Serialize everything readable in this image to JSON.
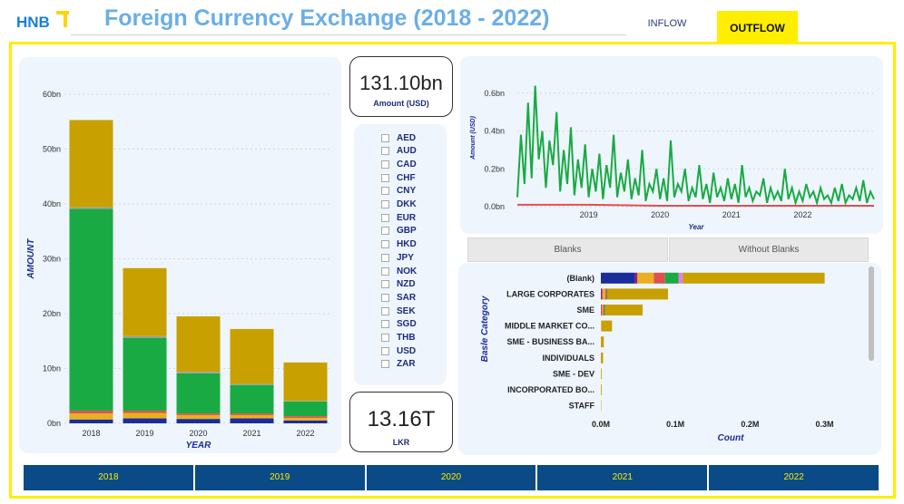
{
  "header": {
    "logo_text": "HNB",
    "title": "Foreign Currency Exchange  (2018 - 2022)",
    "tabs": [
      {
        "label": "INFLOW",
        "active": false
      },
      {
        "label": "OUTFLOW",
        "active": true
      }
    ]
  },
  "colors": {
    "title": "#6aaee8",
    "accent": "#ffee00",
    "navy": "#0a4a86",
    "green": "#1aaa44",
    "gold": "#c8a000"
  },
  "kpis": {
    "amount_value": "131.10bn",
    "amount_label": "Amount (USD)",
    "lkr_value": "13.16T",
    "lkr_label": "LKR"
  },
  "currencies": [
    "AED",
    "AUD",
    "CAD",
    "CHF",
    "CNY",
    "DKK",
    "EUR",
    "GBP",
    "HKD",
    "JPY",
    "NOK",
    "NZD",
    "SAR",
    "SEK",
    "SGD",
    "THB",
    "USD",
    "ZAR"
  ],
  "blanks_toggle": {
    "left": "Blanks",
    "right": "Without Blanks"
  },
  "year_slicer": [
    "2018",
    "2019",
    "2020",
    "2021",
    "2022"
  ],
  "chart_data": [
    {
      "type": "bar",
      "stacked": true,
      "categories": [
        "2018",
        "2019",
        "2020",
        "2021",
        "2022"
      ],
      "xlabel": "YEAR",
      "ylabel": "AMOUNT",
      "ylim": [
        0,
        60
      ],
      "yticks": [
        "0bn",
        "10bn",
        "20bn",
        "30bn",
        "40bn",
        "50bn",
        "60bn"
      ],
      "series": [
        {
          "color": "#1a2e9a",
          "values": [
            0.7,
            0.9,
            0.8,
            0.9,
            0.5
          ]
        },
        {
          "color": "#e8b020",
          "values": [
            1.1,
            1.0,
            0.7,
            0.6,
            0.5
          ]
        },
        {
          "color": "#e05050",
          "values": [
            0.5,
            0.4,
            0.3,
            0.3,
            0.3
          ]
        },
        {
          "color": "#1aaa44",
          "values": [
            36.8,
            13.3,
            7.3,
            5.2,
            2.7
          ]
        },
        {
          "color": "#a0a0a0",
          "values": [
            0.3,
            0.3,
            0.3,
            0.2,
            0.1
          ]
        },
        {
          "color": "#c8a000",
          "values": [
            15.9,
            12.4,
            10.1,
            10.0,
            7.0
          ]
        }
      ]
    },
    {
      "type": "line",
      "xlabel": "Year",
      "ylabel": "Amount (USD)",
      "ylim": [
        0,
        0.7
      ],
      "yticks": [
        "0.0bn",
        "0.2bn",
        "0.4bn",
        "0.6bn"
      ],
      "xticks": [
        "2019",
        "2020",
        "2021",
        "2022"
      ],
      "x_range": [
        2018.0,
        2023.0
      ],
      "series": [
        {
          "color": "#1aaa44",
          "x": [
            2018.0,
            2018.05,
            2018.1,
            2018.15,
            2018.2,
            2018.25,
            2018.3,
            2018.35,
            2018.4,
            2018.45,
            2018.5,
            2018.55,
            2018.6,
            2018.65,
            2018.7,
            2018.75,
            2018.8,
            2018.85,
            2018.9,
            2018.95,
            2019.0,
            2019.05,
            2019.1,
            2019.15,
            2019.2,
            2019.25,
            2019.3,
            2019.35,
            2019.4,
            2019.45,
            2019.5,
            2019.55,
            2019.6,
            2019.65,
            2019.7,
            2019.75,
            2019.8,
            2019.85,
            2019.9,
            2019.95,
            2020.0,
            2020.05,
            2020.1,
            2020.15,
            2020.2,
            2020.25,
            2020.3,
            2020.35,
            2020.4,
            2020.45,
            2020.5,
            2020.55,
            2020.6,
            2020.65,
            2020.7,
            2020.75,
            2020.8,
            2020.85,
            2020.9,
            2020.95,
            2021.0,
            2021.05,
            2021.1,
            2021.15,
            2021.2,
            2021.25,
            2021.3,
            2021.35,
            2021.4,
            2021.45,
            2021.5,
            2021.55,
            2021.6,
            2021.65,
            2021.7,
            2021.75,
            2021.8,
            2021.85,
            2021.9,
            2021.95,
            2022.0,
            2022.05,
            2022.1,
            2022.15,
            2022.2,
            2022.25,
            2022.3,
            2022.35,
            2022.4,
            2022.45,
            2022.5,
            2022.55,
            2022.6,
            2022.65,
            2022.7,
            2022.75,
            2022.8,
            2022.85,
            2022.9,
            2022.95,
            2023.0
          ],
          "y": [
            0.05,
            0.38,
            0.12,
            0.55,
            0.15,
            0.64,
            0.25,
            0.4,
            0.1,
            0.35,
            0.22,
            0.5,
            0.08,
            0.3,
            0.12,
            0.42,
            0.06,
            0.25,
            0.1,
            0.33,
            0.05,
            0.2,
            0.08,
            0.28,
            0.04,
            0.22,
            0.1,
            0.38,
            0.05,
            0.18,
            0.08,
            0.25,
            0.04,
            0.15,
            0.06,
            0.3,
            0.03,
            0.12,
            0.08,
            0.2,
            0.04,
            0.15,
            0.03,
            0.35,
            0.05,
            0.12,
            0.08,
            0.2,
            0.03,
            0.1,
            0.05,
            0.22,
            0.04,
            0.12,
            0.02,
            0.18,
            0.05,
            0.1,
            0.03,
            0.15,
            0.04,
            0.12,
            0.02,
            0.22,
            0.05,
            0.1,
            0.03,
            0.08,
            0.06,
            0.15,
            0.02,
            0.1,
            0.04,
            0.08,
            0.03,
            0.2,
            0.04,
            0.1,
            0.02,
            0.08,
            0.03,
            0.12,
            0.05,
            0.08,
            0.02,
            0.1,
            0.04,
            0.06,
            0.02,
            0.1,
            0.03,
            0.12,
            0.02,
            0.06,
            0.04,
            0.1,
            0.03,
            0.14,
            0.02,
            0.08,
            0.04
          ]
        },
        {
          "color": "#e05050",
          "x": [
            2018.0,
            2019.0,
            2020.0,
            2021.0,
            2022.0,
            2023.0
          ],
          "y": [
            0.01,
            0.01,
            0.005,
            0.005,
            0.005,
            0.005
          ]
        }
      ]
    },
    {
      "type": "bar",
      "orientation": "horizontal",
      "stacked": true,
      "categories": [
        "(Blank)",
        "LARGE CORPORATES",
        "SME",
        "MIDDLE MARKET CO...",
        "SME - BUSINESS BA...",
        "INDIVIDUALS",
        "SME - DEV",
        "INCORPORATED BO...",
        "STAFF"
      ],
      "xlabel": "Count",
      "ylabel": "Basle Category",
      "xlim": [
        0,
        0.32
      ],
      "xticks": [
        "0.0M",
        "0.1M",
        "0.2M",
        "0.3M"
      ],
      "series": [
        {
          "color": "#1a2e9a",
          "values": [
            0.045,
            0,
            0,
            0,
            0,
            0,
            0,
            0,
            0
          ]
        },
        {
          "color": "#8a2090",
          "values": [
            0.004,
            0.002,
            0.001,
            0,
            0,
            0,
            0,
            0,
            0
          ]
        },
        {
          "color": "#e8b020",
          "values": [
            0.022,
            0.004,
            0.002,
            0.001,
            0,
            0,
            0,
            0,
            0
          ]
        },
        {
          "color": "#e05050",
          "values": [
            0.015,
            0.002,
            0.002,
            0,
            0,
            0,
            0,
            0,
            0
          ]
        },
        {
          "color": "#1aaa44",
          "values": [
            0.018,
            0.001,
            0.001,
            0,
            0,
            0,
            0,
            0,
            0
          ]
        },
        {
          "color": "#e080e0",
          "values": [
            0.006,
            0,
            0,
            0,
            0,
            0,
            0,
            0,
            0
          ]
        },
        {
          "color": "#c8a000",
          "values": [
            0.19,
            0.081,
            0.05,
            0.014,
            0.004,
            0.003,
            0.001,
            0.001,
            0.0005
          ]
        }
      ]
    }
  ]
}
